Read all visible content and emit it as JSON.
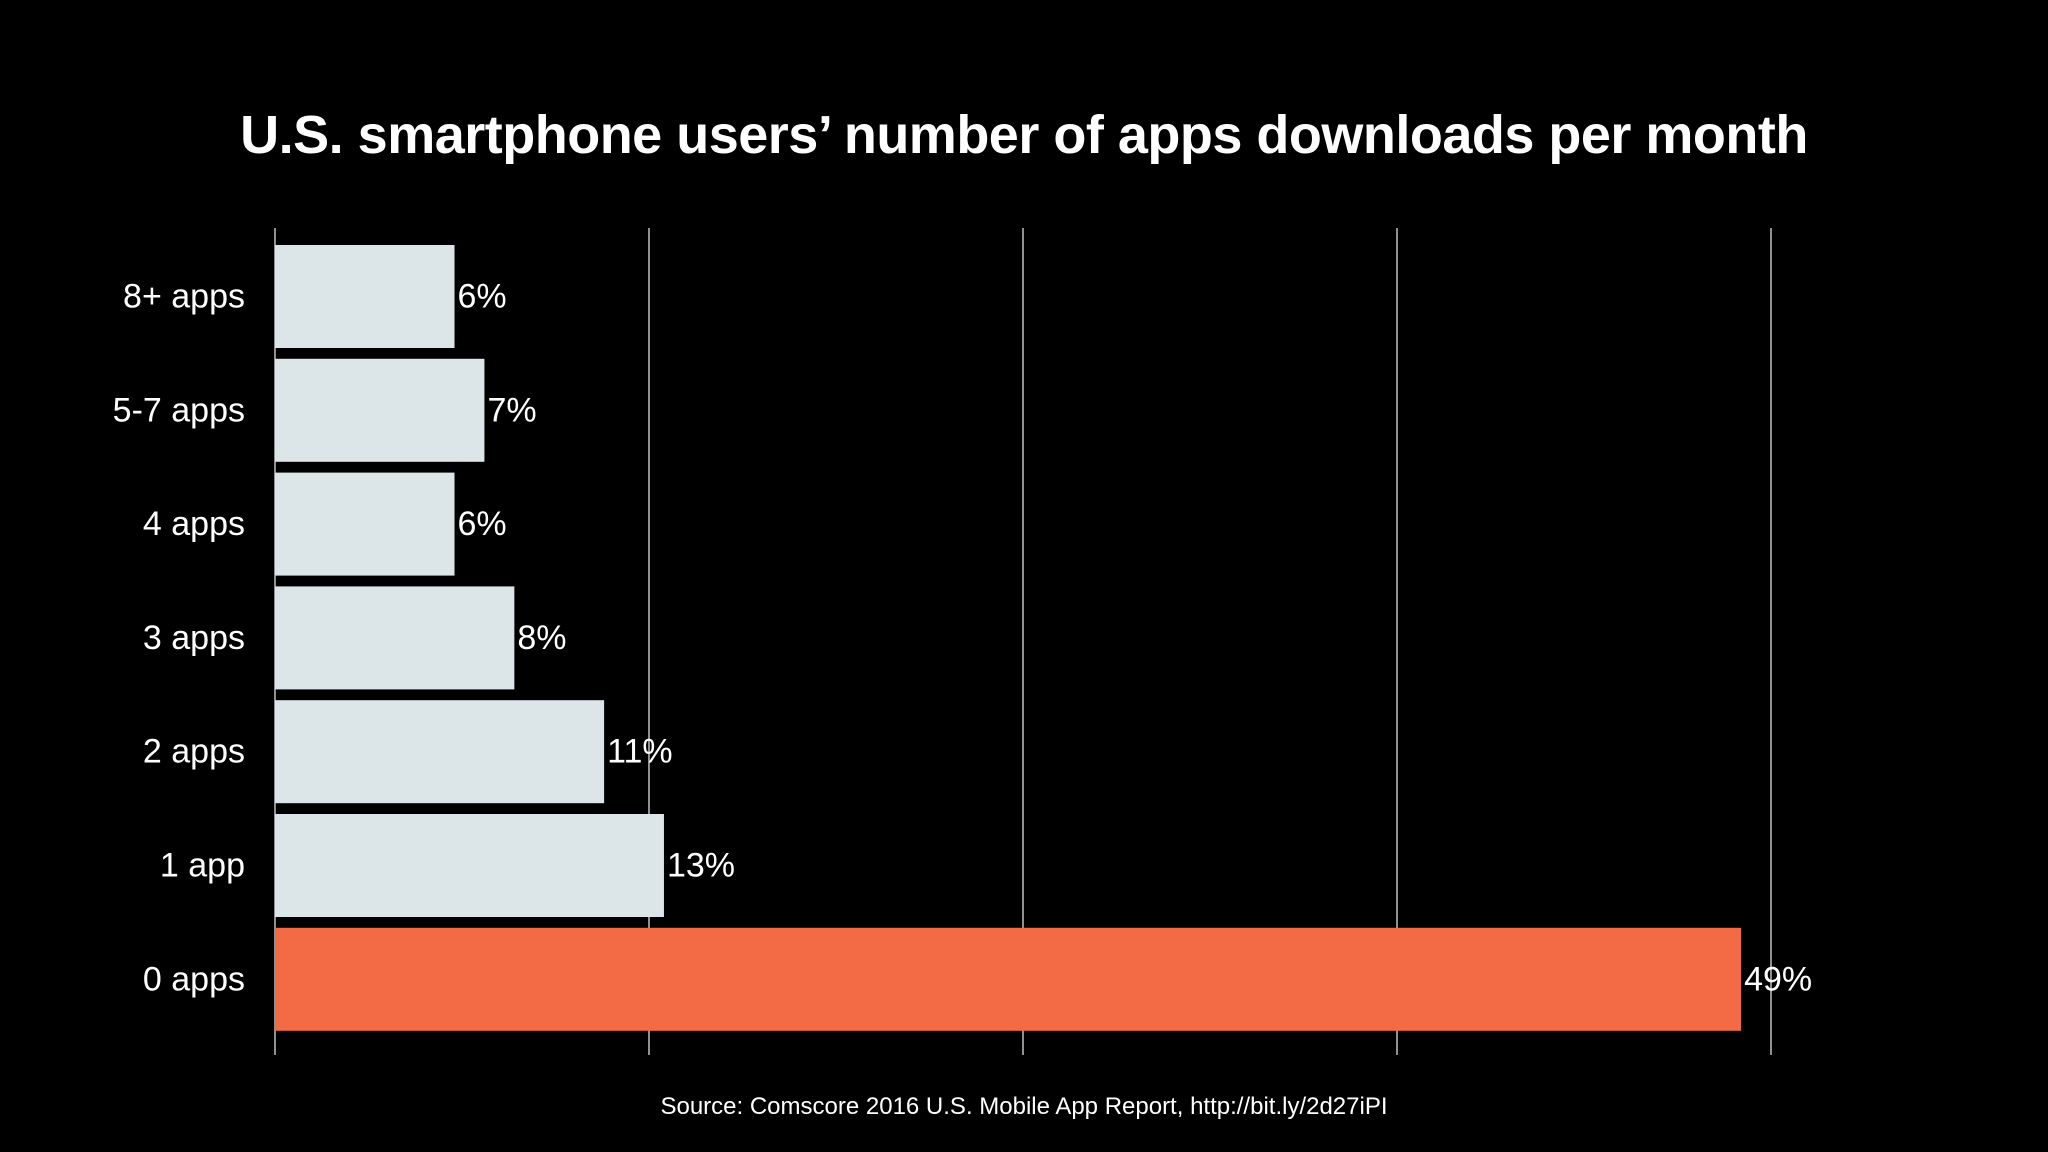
{
  "chart_data": {
    "type": "bar",
    "orientation": "horizontal",
    "title": "U.S. smartphone users’ number of apps downloads per month",
    "categories": [
      "8+ apps",
      "5-7 apps",
      "4 apps",
      "3 apps",
      "2 apps",
      "1 app",
      "0 apps"
    ],
    "values": [
      6,
      7,
      6,
      8,
      11,
      13,
      49
    ],
    "value_labels": [
      "6%",
      "7%",
      "6%",
      "8%",
      "11%",
      "13%",
      "49%"
    ],
    "xlim": [
      0,
      50
    ],
    "grid": true,
    "colors": {
      "default_bar": "#dce5e8",
      "highlight_bar": "#f26b44",
      "highlight_category": "0 apps",
      "gridline": "#bfbfbf",
      "background": "#000000",
      "text": "#ffffff"
    }
  },
  "source": "Source: Comscore 2016 U.S. Mobile App Report, http://bit.ly/2d27iPI"
}
